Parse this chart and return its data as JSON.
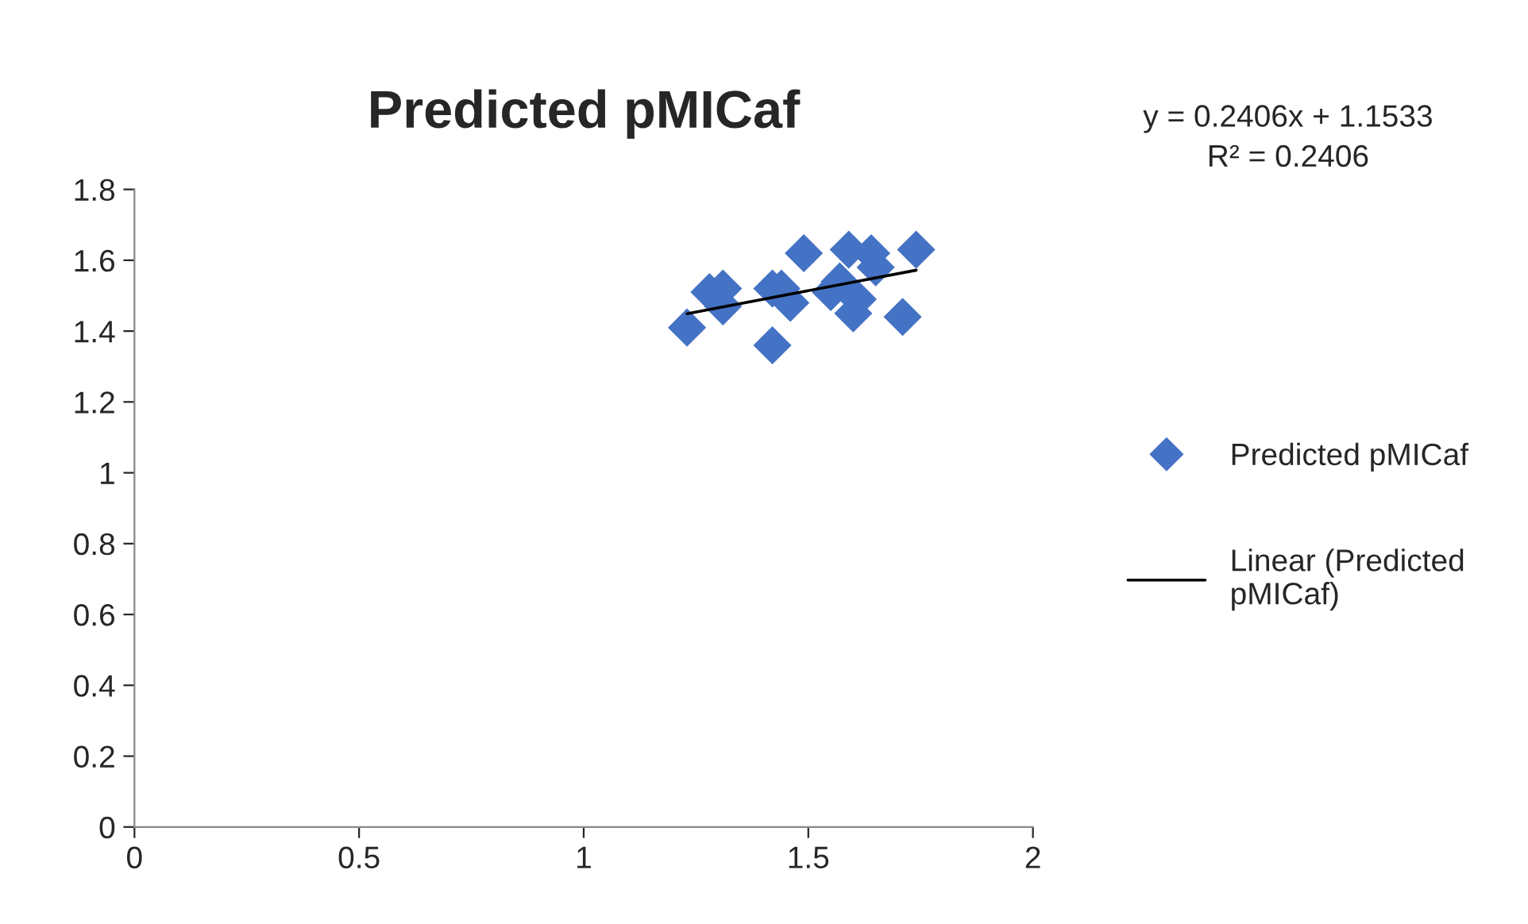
{
  "chart_data": {
    "type": "scatter",
    "title": "Predicted pMICaf",
    "x": [
      1.23,
      1.28,
      1.31,
      1.31,
      1.42,
      1.42,
      1.44,
      1.46,
      1.49,
      1.55,
      1.57,
      1.59,
      1.6,
      1.61,
      1.64,
      1.65,
      1.71,
      1.74
    ],
    "series": [
      {
        "name": "Predicted pMICaf",
        "color": "#4472c4",
        "marker": "diamond",
        "values": [
          1.41,
          1.51,
          1.52,
          1.47,
          1.36,
          1.52,
          1.52,
          1.48,
          1.62,
          1.51,
          1.54,
          1.63,
          1.45,
          1.49,
          1.62,
          1.58,
          1.44,
          1.63
        ]
      },
      {
        "name": "Linear (Predicted pMICaf)",
        "type": "line",
        "color": "#000000",
        "x": [
          1.23,
          1.74
        ],
        "values": [
          1.449,
          1.572
        ],
        "marker": "none",
        "line_style": "solid"
      }
    ],
    "annotations": [
      {
        "text": "y = 0.2406x + 1.1533\nR² = 0.2406"
      }
    ],
    "xlim": [
      0,
      2
    ],
    "xticks": [
      0,
      0.5,
      1,
      1.5,
      2
    ],
    "ylim": [
      0,
      1.8
    ],
    "yticks": [
      0,
      0.2,
      0.4,
      0.6,
      0.8,
      1,
      1.2,
      1.4,
      1.6,
      1.8
    ],
    "grid": false,
    "legend": "right"
  }
}
